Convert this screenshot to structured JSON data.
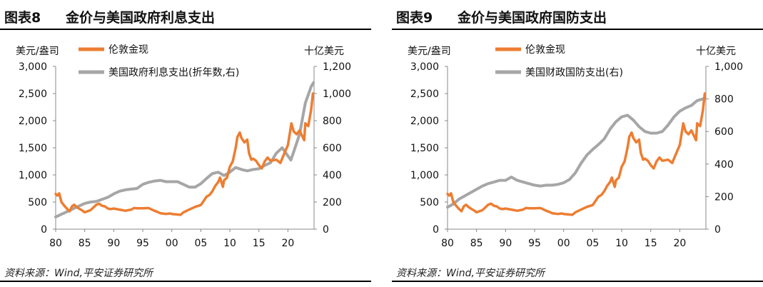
{
  "charts": [
    {
      "fig_no": "图表8",
      "title": "金价与美国政府利息支出",
      "source": "资料来源：Wind,平安证券研究所",
      "left_unit": "美元/盎司",
      "right_unit": "十亿美元",
      "colors": {
        "gold": "#ED7D31",
        "right": "#A6A6A6"
      }
    },
    {
      "fig_no": "图表9",
      "title": "金价与美国政府国防支出",
      "source": "资料来源：Wind,平安证券研究所",
      "left_unit": "美元/盎司",
      "right_unit": "十亿美元",
      "colors": {
        "gold": "#ED7D31",
        "right": "#A6A6A6"
      }
    }
  ],
  "chart_data": [
    {
      "type": "line",
      "x_tick_labels": [
        "80",
        "85",
        "90",
        "95",
        "00",
        "05",
        "10",
        "15",
        "20"
      ],
      "x_range": [
        1980,
        2024.5
      ],
      "y_left": {
        "range": [
          0,
          3000
        ],
        "ticks": [
          "0",
          "500",
          "1,000",
          "1,500",
          "2,000",
          "2,500",
          "3,000"
        ]
      },
      "y_right": {
        "range": [
          0,
          1200
        ],
        "ticks": [
          "0",
          "200",
          "400",
          "600",
          "800",
          "1,000",
          "1,200"
        ]
      },
      "series": [
        {
          "name": "伦敦金现",
          "axis": "left",
          "x": [
            1980,
            1980.3,
            1980.6,
            1981,
            1981.5,
            1982,
            1982.4,
            1982.8,
            1983.2,
            1983.6,
            1984,
            1984.5,
            1985,
            1985.5,
            1986,
            1986.5,
            1987,
            1987.5,
            1988,
            1988.5,
            1989,
            1989.5,
            1990,
            1991,
            1992,
            1993,
            1993.5,
            1994,
            1995,
            1996,
            1997,
            1997.5,
            1998,
            1999,
            1999.7,
            2000,
            2001,
            2001.5,
            2002,
            2003,
            2004,
            2005,
            2006,
            2006.5,
            2007,
            2007.5,
            2008,
            2008.3,
            2008.8,
            2009,
            2009.5,
            2010,
            2010.5,
            2011,
            2011.3,
            2011.7,
            2012,
            2012.5,
            2013,
            2013.3,
            2013.7,
            2014,
            2014.5,
            2015,
            2015.5,
            2016,
            2016.5,
            2017,
            2018,
            2018.7,
            2019,
            2019.6,
            2020,
            2020.6,
            2021,
            2021.5,
            2022,
            2022.8,
            2023,
            2023.5,
            2024,
            2024.3
          ],
          "values": [
            650,
            620,
            660,
            500,
            430,
            370,
            330,
            420,
            450,
            410,
            380,
            350,
            310,
            330,
            350,
            400,
            450,
            470,
            430,
            420,
            380,
            370,
            380,
            360,
            340,
            360,
            390,
            385,
            385,
            390,
            340,
            320,
            295,
            280,
            290,
            280,
            270,
            265,
            310,
            360,
            410,
            445,
            600,
            630,
            700,
            800,
            870,
            950,
            780,
            900,
            950,
            1150,
            1250,
            1500,
            1700,
            1780,
            1680,
            1600,
            1650,
            1400,
            1280,
            1300,
            1260,
            1180,
            1120,
            1250,
            1320,
            1260,
            1280,
            1220,
            1300,
            1450,
            1550,
            1950,
            1800,
            1750,
            1820,
            1640,
            1950,
            1900,
            2200,
            2500
          ],
          "color": "#ED7D31"
        },
        {
          "name": "美国政府利息支出(折年数,右)",
          "axis": "right",
          "x": [
            1980,
            1981,
            1982,
            1983,
            1984,
            1985,
            1986,
            1987,
            1988,
            1989,
            1990,
            1991,
            1992,
            1993,
            1994,
            1995,
            1996,
            1997,
            1998,
            1999,
            2000,
            2001,
            2002,
            2003,
            2004,
            2005,
            2006,
            2007,
            2008,
            2009,
            2010,
            2011,
            2012,
            2013,
            2014,
            2015,
            2016,
            2017,
            2018,
            2019,
            2020,
            2020.5,
            2021,
            2022,
            2023,
            2024,
            2024.4
          ],
          "values": [
            90,
            110,
            130,
            150,
            170,
            190,
            200,
            205,
            220,
            235,
            260,
            280,
            290,
            295,
            300,
            330,
            345,
            355,
            360,
            350,
            350,
            350,
            330,
            310,
            310,
            335,
            375,
            410,
            420,
            395,
            420,
            455,
            440,
            430,
            440,
            445,
            470,
            490,
            560,
            600,
            540,
            510,
            570,
            700,
            930,
            1050,
            1080
          ],
          "color": "#A6A6A6"
        }
      ]
    },
    {
      "type": "line",
      "x_tick_labels": [
        "80",
        "85",
        "90",
        "95",
        "00",
        "05",
        "10",
        "15",
        "20"
      ],
      "x_range": [
        1980,
        2024.5
      ],
      "y_left": {
        "range": [
          0,
          3000
        ],
        "ticks": [
          "0",
          "500",
          "1,000",
          "1,500",
          "2,000",
          "2,500",
          "3,000"
        ]
      },
      "y_right": {
        "range": [
          0,
          1000
        ],
        "ticks": [
          "0",
          "200",
          "400",
          "600",
          "800",
          "1,000"
        ]
      },
      "series": [
        {
          "name": "伦敦金现",
          "axis": "left",
          "x": [
            1980,
            1980.3,
            1980.6,
            1981,
            1981.5,
            1982,
            1982.4,
            1982.8,
            1983.2,
            1983.6,
            1984,
            1984.5,
            1985,
            1985.5,
            1986,
            1986.5,
            1987,
            1987.5,
            1988,
            1988.5,
            1989,
            1989.5,
            1990,
            1991,
            1992,
            1993,
            1993.5,
            1994,
            1995,
            1996,
            1997,
            1997.5,
            1998,
            1999,
            1999.7,
            2000,
            2001,
            2001.5,
            2002,
            2003,
            2004,
            2005,
            2006,
            2006.5,
            2007,
            2007.5,
            2008,
            2008.3,
            2008.8,
            2009,
            2009.5,
            2010,
            2010.5,
            2011,
            2011.3,
            2011.7,
            2012,
            2012.5,
            2013,
            2013.3,
            2013.7,
            2014,
            2014.5,
            2015,
            2015.5,
            2016,
            2016.5,
            2017,
            2018,
            2018.7,
            2019,
            2019.6,
            2020,
            2020.6,
            2021,
            2021.5,
            2022,
            2022.8,
            2023,
            2023.5,
            2024,
            2024.3
          ],
          "values": [
            650,
            620,
            660,
            500,
            430,
            370,
            330,
            420,
            450,
            410,
            380,
            350,
            310,
            330,
            350,
            400,
            450,
            470,
            430,
            420,
            380,
            370,
            380,
            360,
            340,
            360,
            390,
            385,
            385,
            390,
            340,
            320,
            295,
            280,
            290,
            280,
            270,
            265,
            310,
            360,
            410,
            445,
            600,
            630,
            700,
            800,
            870,
            950,
            780,
            900,
            950,
            1150,
            1250,
            1500,
            1700,
            1780,
            1680,
            1600,
            1650,
            1400,
            1280,
            1300,
            1260,
            1180,
            1120,
            1250,
            1320,
            1260,
            1280,
            1220,
            1300,
            1450,
            1550,
            1950,
            1800,
            1750,
            1820,
            1640,
            1950,
            1900,
            2200,
            2500
          ],
          "color": "#ED7D31"
        },
        {
          "name": "美国财政国防支出(右)",
          "axis": "right",
          "x": [
            1980,
            1981,
            1982,
            1983,
            1984,
            1985,
            1986,
            1987,
            1988,
            1989,
            1990,
            1991,
            1992,
            1993,
            1994,
            1995,
            1996,
            1997,
            1998,
            1999,
            2000,
            2001,
            2002,
            2003,
            2004,
            2005,
            2006,
            2007,
            2008,
            2009,
            2010,
            2011,
            2012,
            2013,
            2014,
            2015,
            2016,
            2017,
            2018,
            2019,
            2020,
            2021,
            2022,
            2023,
            2024
          ],
          "values": [
            135,
            155,
            185,
            205,
            225,
            245,
            265,
            280,
            290,
            300,
            300,
            320,
            300,
            290,
            280,
            270,
            265,
            270,
            270,
            275,
            285,
            305,
            345,
            405,
            455,
            490,
            520,
            555,
            615,
            660,
            690,
            700,
            670,
            630,
            600,
            590,
            590,
            600,
            640,
            690,
            725,
            745,
            760,
            790,
            800
          ],
          "color": "#A6A6A6"
        }
      ]
    }
  ],
  "legend": [
    [
      "伦敦金现",
      "美国政府利息支出(折年数,右)"
    ],
    [
      "伦敦金现",
      "美国财政国防支出(右)"
    ]
  ]
}
